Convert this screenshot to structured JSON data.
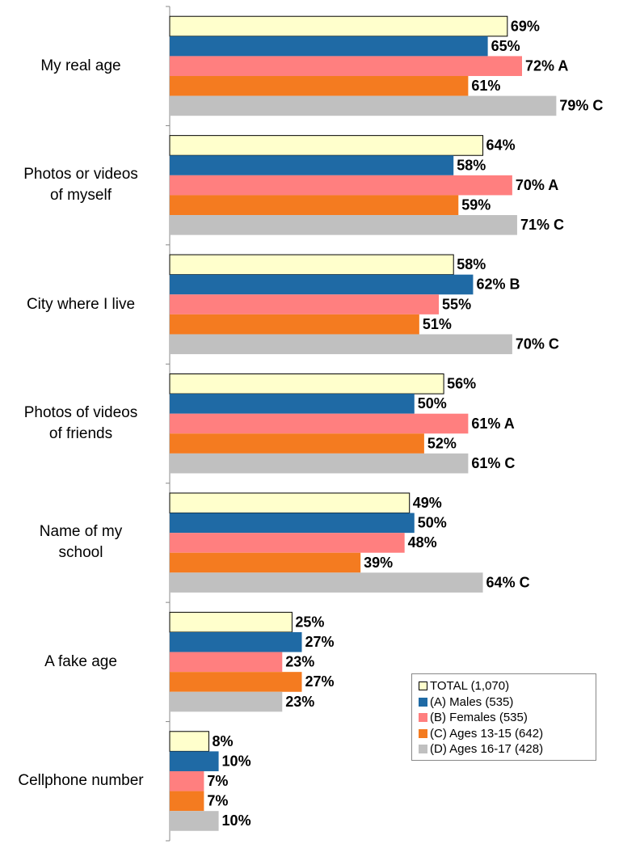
{
  "chart_data": {
    "type": "bar",
    "orientation": "horizontal",
    "categories": [
      "My real age",
      "Photos or videos\nof myself",
      "City where I live",
      "Photos of videos\nof friends",
      "Name of my\nschool",
      "A fake age",
      "Cellphone number"
    ],
    "series": [
      {
        "name": "TOTAL (1,070)",
        "color": "#ffffcc",
        "values": [
          69,
          64,
          58,
          56,
          49,
          25,
          8
        ],
        "value_labels": [
          "69%",
          "64%",
          "58%",
          "56%",
          "49%",
          "25%",
          "8%"
        ]
      },
      {
        "name": "(A) Males (535)",
        "color": "#1f6aa5",
        "values": [
          65,
          58,
          62,
          50,
          50,
          27,
          10
        ],
        "value_labels": [
          "65%",
          "58%",
          "62% B",
          "50%",
          "50%",
          "27%",
          "10%"
        ]
      },
      {
        "name": "(B) Females (535)",
        "color": "#ff7f7f",
        "values": [
          72,
          70,
          55,
          61,
          48,
          23,
          7
        ],
        "value_labels": [
          "72% A",
          "70% A",
          "55%",
          "61% A",
          "48%",
          "23%",
          "7%"
        ]
      },
      {
        "name": "(C) Ages 13-15 (642)",
        "color": "#f47b20",
        "values": [
          61,
          59,
          51,
          52,
          39,
          27,
          7
        ],
        "value_labels": [
          "61%",
          "59%",
          "51%",
          "52%",
          "39%",
          "27%",
          "7%"
        ]
      },
      {
        "name": "(D) Ages 16-17 (428)",
        "color": "#c0c0c0",
        "values": [
          79,
          71,
          70,
          61,
          64,
          23,
          10
        ],
        "value_labels": [
          "79% C",
          "71% C",
          "70% C",
          "61% C",
          "64% C",
          "23%",
          "10%"
        ]
      }
    ],
    "xlim": [
      0,
      90
    ]
  }
}
